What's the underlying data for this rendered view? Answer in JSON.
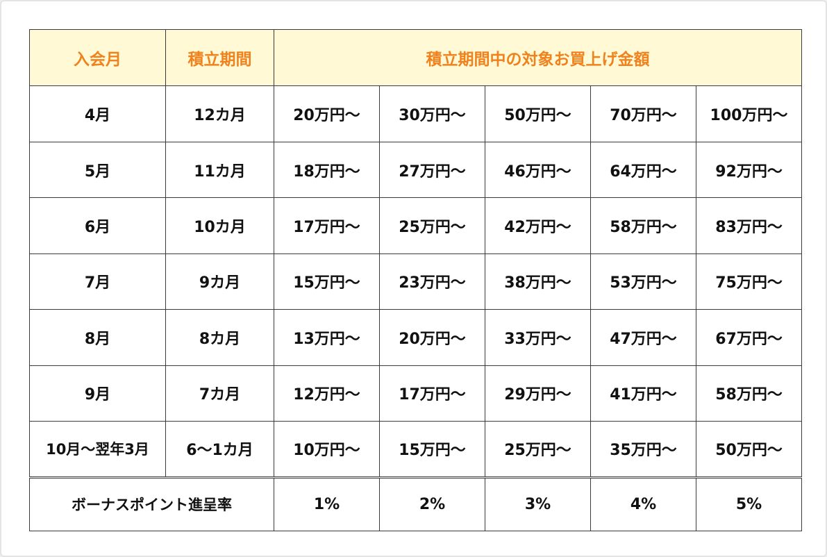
{
  "header": {
    "join_month": "入会月",
    "period": "積立期間",
    "amount": "積立期間中の対象お買上げ金額"
  },
  "rows": [
    {
      "month": "4月",
      "period": "12カ月",
      "amounts": [
        "20万円〜",
        "30万円〜",
        "50万円〜",
        "70万円〜",
        "100万円〜"
      ]
    },
    {
      "month": "5月",
      "period": "11カ月",
      "amounts": [
        "18万円〜",
        "27万円〜",
        "46万円〜",
        "64万円〜",
        "92万円〜"
      ]
    },
    {
      "month": "6月",
      "period": "10カ月",
      "amounts": [
        "17万円〜",
        "25万円〜",
        "42万円〜",
        "58万円〜",
        "83万円〜"
      ]
    },
    {
      "month": "7月",
      "period": "9カ月",
      "amounts": [
        "15万円〜",
        "23万円〜",
        "38万円〜",
        "53万円〜",
        "75万円〜"
      ]
    },
    {
      "month": "8月",
      "period": "8カ月",
      "amounts": [
        "13万円〜",
        "20万円〜",
        "33万円〜",
        "47万円〜",
        "67万円〜"
      ]
    },
    {
      "month": "9月",
      "period": "7カ月",
      "amounts": [
        "12万円〜",
        "17万円〜",
        "29万円〜",
        "41万円〜",
        "58万円〜"
      ]
    },
    {
      "month": "10月〜翌年3月",
      "period": "6〜1カ月",
      "amounts": [
        "10万円〜",
        "15万円〜",
        "25万円〜",
        "35万円〜",
        "50万円〜"
      ]
    }
  ],
  "bonus": {
    "label": "ボーナスポイント進呈率",
    "rates": [
      "1%",
      "2%",
      "3%",
      "4%",
      "5%"
    ]
  },
  "colors": {
    "header_bg": "#fff9d6",
    "header_text": "#f0821e",
    "body_text": "#111111",
    "border": "#3a3a3a"
  }
}
